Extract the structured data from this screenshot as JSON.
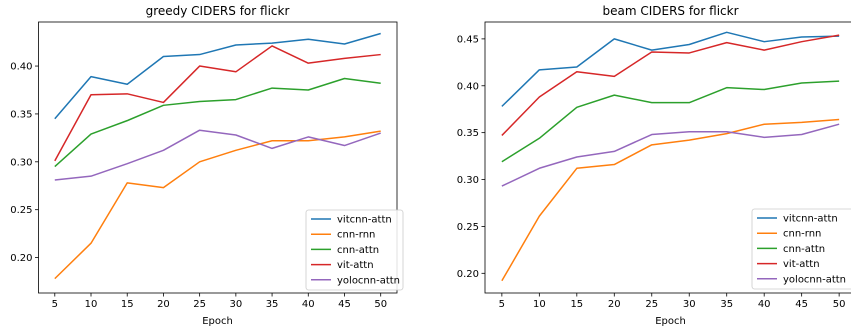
{
  "chart_data": [
    {
      "type": "line",
      "title": "greedy CIDERS for flickr",
      "xlabel": "Epoch",
      "ylabel": "",
      "x": [
        5,
        10,
        15,
        20,
        25,
        30,
        35,
        40,
        45,
        50
      ],
      "xlim": [
        2.75,
        52.25
      ],
      "ylim": [
        0.163,
        0.446
      ],
      "yticks": [
        "0.20",
        "0.25",
        "0.30",
        "0.35",
        "0.40"
      ],
      "ytick_values": [
        0.2,
        0.25,
        0.3,
        0.35,
        0.4
      ],
      "grid": false,
      "legend_position": "lower-right",
      "series": [
        {
          "name": "vitcnn-attn",
          "color": "#1f77b4",
          "values": [
            0.345,
            0.389,
            0.381,
            0.41,
            0.412,
            0.422,
            0.424,
            0.428,
            0.423,
            0.434
          ]
        },
        {
          "name": "cnn-rnn",
          "color": "#ff7f0e",
          "values": [
            0.178,
            0.215,
            0.278,
            0.273,
            0.3,
            0.312,
            0.322,
            0.322,
            0.326,
            0.332
          ]
        },
        {
          "name": "cnn-attn",
          "color": "#2ca02c",
          "values": [
            0.295,
            0.329,
            0.343,
            0.359,
            0.363,
            0.365,
            0.377,
            0.375,
            0.387,
            0.382
          ]
        },
        {
          "name": "vit-attn",
          "color": "#d62728",
          "values": [
            0.301,
            0.37,
            0.371,
            0.362,
            0.4,
            0.394,
            0.421,
            0.403,
            0.408,
            0.412
          ]
        },
        {
          "name": "yolocnn-attn",
          "color": "#9467bd",
          "values": [
            0.281,
            0.285,
            0.298,
            0.312,
            0.333,
            0.328,
            0.314,
            0.326,
            0.317,
            0.33
          ]
        }
      ]
    },
    {
      "type": "line",
      "title": "beam CIDERS for flickr",
      "xlabel": "Epoch",
      "ylabel": "",
      "x": [
        5,
        10,
        15,
        20,
        25,
        30,
        35,
        40,
        45,
        50
      ],
      "xlim": [
        2.75,
        52.25
      ],
      "ylim": [
        0.179,
        0.468
      ],
      "yticks": [
        "0.20",
        "0.25",
        "0.30",
        "0.35",
        "0.40",
        "0.45"
      ],
      "ytick_values": [
        0.2,
        0.25,
        0.3,
        0.35,
        0.4,
        0.45
      ],
      "grid": false,
      "legend_position": "lower-right",
      "series": [
        {
          "name": "vitcnn-attn",
          "color": "#1f77b4",
          "values": [
            0.378,
            0.417,
            0.42,
            0.45,
            0.438,
            0.444,
            0.457,
            0.447,
            0.452,
            0.453
          ]
        },
        {
          "name": "cnn-rnn",
          "color": "#ff7f0e",
          "values": [
            0.192,
            0.261,
            0.312,
            0.316,
            0.337,
            0.342,
            0.349,
            0.359,
            0.361,
            0.364
          ]
        },
        {
          "name": "cnn-attn",
          "color": "#2ca02c",
          "values": [
            0.319,
            0.344,
            0.377,
            0.39,
            0.382,
            0.382,
            0.398,
            0.396,
            0.403,
            0.405
          ]
        },
        {
          "name": "vit-attn",
          "color": "#d62728",
          "values": [
            0.347,
            0.388,
            0.415,
            0.41,
            0.436,
            0.435,
            0.446,
            0.438,
            0.447,
            0.454
          ]
        },
        {
          "name": "yolocnn-attn",
          "color": "#9467bd",
          "values": [
            0.293,
            0.312,
            0.324,
            0.33,
            0.348,
            0.351,
            0.351,
            0.345,
            0.348,
            0.359
          ]
        }
      ]
    }
  ]
}
